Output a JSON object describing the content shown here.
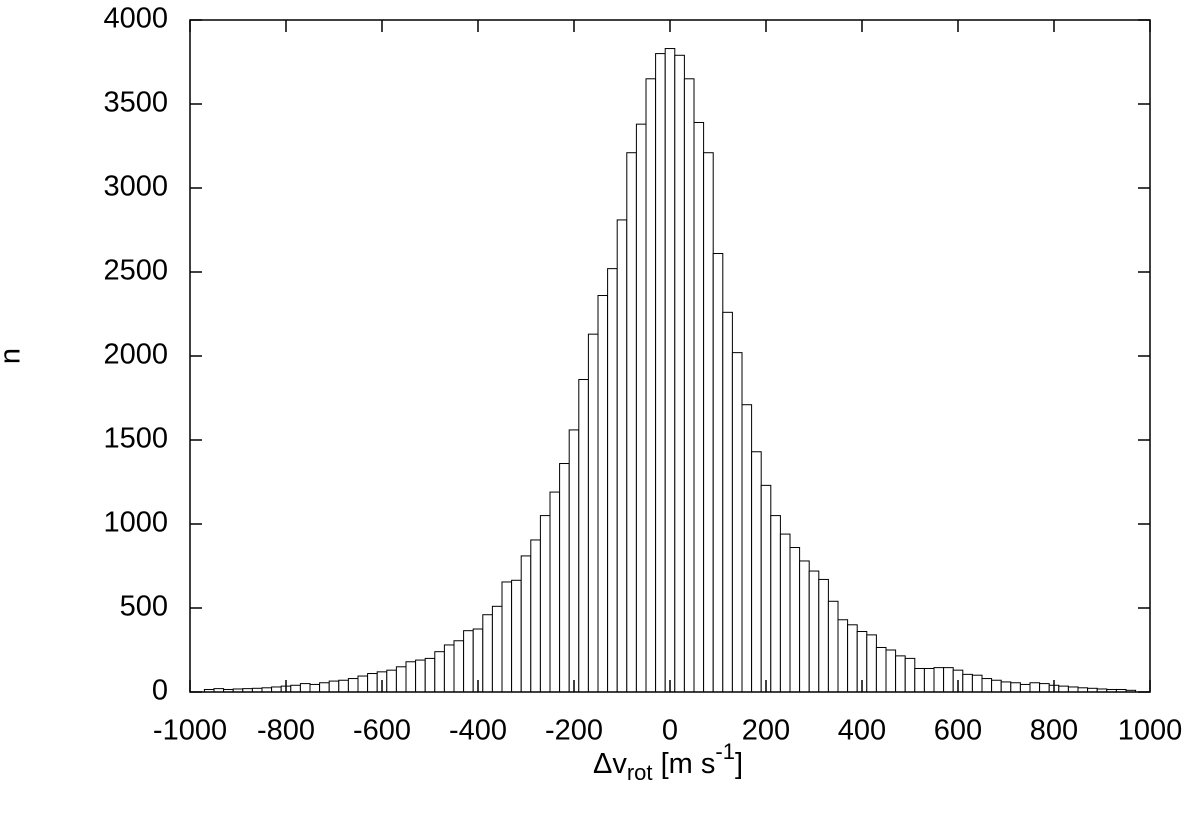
{
  "chart_data": {
    "type": "histogram",
    "xlabel": {
      "base": "Δv",
      "sub": "rot",
      "mid": " [m s",
      "sup": "-1",
      "end": "]"
    },
    "ylabel": "n",
    "bins": [
      -970,
      -950,
      -930,
      -910,
      -890,
      -870,
      -850,
      -830,
      -810,
      -790,
      -770,
      -750,
      -730,
      -710,
      -690,
      -670,
      -650,
      -630,
      -610,
      -590,
      -570,
      -550,
      -530,
      -510,
      -490,
      -470,
      -450,
      -430,
      -410,
      -390,
      -370,
      -350,
      -330,
      -310,
      -290,
      -270,
      -250,
      -230,
      -210,
      -190,
      -170,
      -150,
      -130,
      -110,
      -90,
      -70,
      -50,
      -30,
      -10,
      10,
      30,
      50,
      70,
      90,
      110,
      130,
      150,
      170,
      190,
      210,
      230,
      250,
      270,
      290,
      310,
      330,
      350,
      370,
      390,
      410,
      430,
      450,
      470,
      490,
      510,
      530,
      550,
      570,
      590,
      610,
      630,
      650,
      670,
      690,
      710,
      730,
      750,
      770,
      790,
      810,
      830,
      850,
      870,
      890,
      910,
      930,
      950,
      970
    ],
    "values": [
      15,
      20,
      15,
      18,
      20,
      22,
      25,
      30,
      35,
      40,
      50,
      45,
      55,
      65,
      70,
      80,
      95,
      110,
      120,
      130,
      150,
      180,
      190,
      200,
      240,
      280,
      305,
      365,
      375,
      460,
      510,
      655,
      665,
      810,
      905,
      1050,
      1190,
      1360,
      1560,
      1860,
      2130,
      2360,
      2520,
      2810,
      3210,
      3380,
      3650,
      3800,
      3830,
      3790,
      3650,
      3390,
      3210,
      2610,
      2260,
      2020,
      1710,
      1430,
      1230,
      1050,
      940,
      860,
      780,
      720,
      670,
      540,
      430,
      400,
      360,
      340,
      265,
      250,
      215,
      200,
      140,
      140,
      145,
      145,
      130,
      105,
      100,
      80,
      70,
      60,
      55,
      45,
      55,
      50,
      40,
      35,
      30,
      25,
      22,
      18,
      15,
      15,
      10
    ],
    "color": "#ffffff",
    "xlim": [
      -1000,
      1000
    ],
    "xticks": [
      -1000,
      -800,
      -600,
      -400,
      -200,
      0,
      200,
      400,
      600,
      800,
      1000
    ],
    "ylim": [
      0,
      4000
    ],
    "yticks": [
      0,
      500,
      1000,
      1500,
      2000,
      2500,
      3000,
      3500,
      4000
    ]
  }
}
